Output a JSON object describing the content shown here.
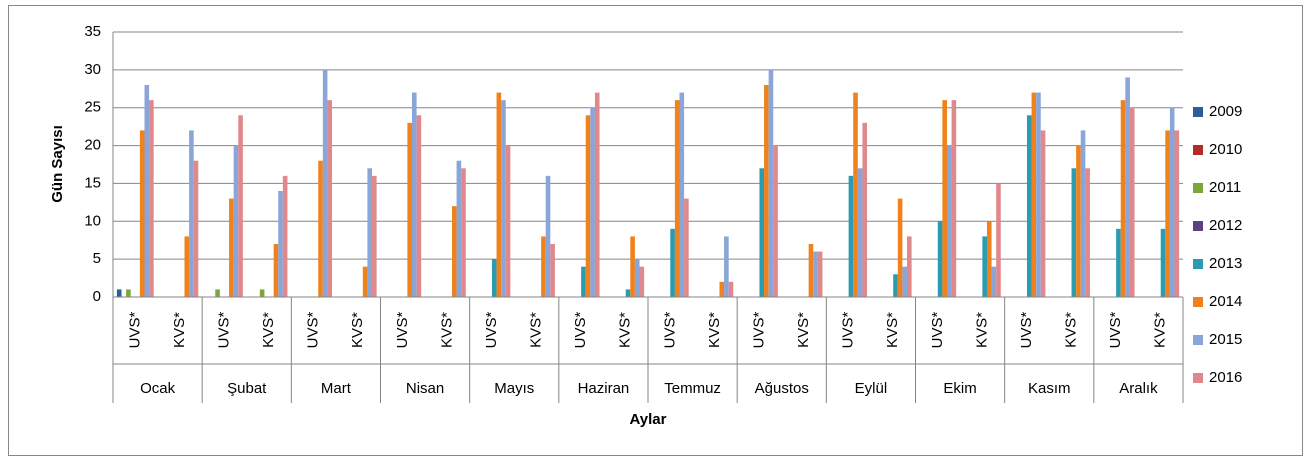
{
  "chart_data": {
    "type": "bar",
    "y_label": "Gün Sayısı",
    "x_label": "Aylar",
    "categories": [
      "UVS*",
      "KVS*",
      "UVS*",
      "KVS*",
      "UVS*",
      "KVS*",
      "UVS*",
      "KVS*",
      "UVS*",
      "KVS*",
      "UVS*",
      "KVS*",
      "UVS*",
      "KVS*",
      "UVS*",
      "KVS*",
      "UVS*",
      "KVS*",
      "UVS*",
      "KVS*",
      "UVS*",
      "KVS*",
      "UVS*",
      "KVS*"
    ],
    "category_groups": [
      "Ocak",
      "Şubat",
      "Mart",
      "Nisan",
      "Mayıs",
      "Haziran",
      "Temmuz",
      "Ağustos",
      "Eylül",
      "Ekim",
      "Kasım",
      "Aralık"
    ],
    "series": [
      {
        "name": "2009",
        "color": "#2d5c9a",
        "values": [
          1,
          0,
          0,
          0,
          0,
          0,
          0,
          0,
          0,
          0,
          0,
          0,
          0,
          0,
          0,
          0,
          0,
          0,
          0,
          0,
          0,
          0,
          0,
          0
        ]
      },
      {
        "name": "2010",
        "color": "#b52a26",
        "values": [
          0,
          0,
          0,
          0,
          0,
          0,
          0,
          0,
          0,
          0,
          0,
          0,
          0,
          0,
          0,
          0,
          0,
          0,
          0,
          0,
          0,
          0,
          0,
          0
        ]
      },
      {
        "name": "2011",
        "color": "#7ca73a",
        "values": [
          1,
          0,
          1,
          1,
          0,
          0,
          0,
          0,
          0,
          0,
          0,
          0,
          0,
          0,
          0,
          0,
          0,
          0,
          0,
          0,
          0,
          0,
          0,
          0
        ]
      },
      {
        "name": "2012",
        "color": "#5e3f86",
        "values": [
          0,
          0,
          0,
          0,
          0,
          0,
          0,
          0,
          0,
          0,
          0,
          0,
          0,
          0,
          0,
          0,
          0,
          0,
          0,
          0,
          0,
          0,
          0,
          0
        ]
      },
      {
        "name": "2013",
        "color": "#2a9bb0",
        "values": [
          0,
          0,
          0,
          0,
          0,
          0,
          0,
          0,
          5,
          0,
          4,
          1,
          9,
          0,
          17,
          0,
          16,
          3,
          10,
          8,
          24,
          17,
          9,
          9
        ]
      },
      {
        "name": "2014",
        "color": "#f0821e",
        "values": [
          22,
          8,
          13,
          7,
          18,
          4,
          23,
          12,
          27,
          8,
          24,
          8,
          26,
          2,
          28,
          7,
          27,
          13,
          26,
          10,
          27,
          20,
          26,
          22
        ]
      },
      {
        "name": "2015",
        "color": "#8aa5d8",
        "values": [
          28,
          22,
          20,
          14,
          30,
          17,
          27,
          18,
          26,
          16,
          25,
          5,
          27,
          8,
          30,
          6,
          17,
          4,
          20,
          4,
          27,
          22,
          29,
          25
        ]
      },
      {
        "name": "2016",
        "color": "#e0898d",
        "values": [
          26,
          18,
          24,
          16,
          26,
          16,
          24,
          17,
          20,
          7,
          27,
          4,
          13,
          2,
          20,
          6,
          23,
          8,
          26,
          15,
          22,
          17,
          25,
          22
        ]
      }
    ],
    "ylim": [
      0,
      35
    ],
    "yticks": [
      0,
      5,
      10,
      15,
      20,
      25,
      30,
      35
    ],
    "grid": true,
    "legend": "right"
  }
}
